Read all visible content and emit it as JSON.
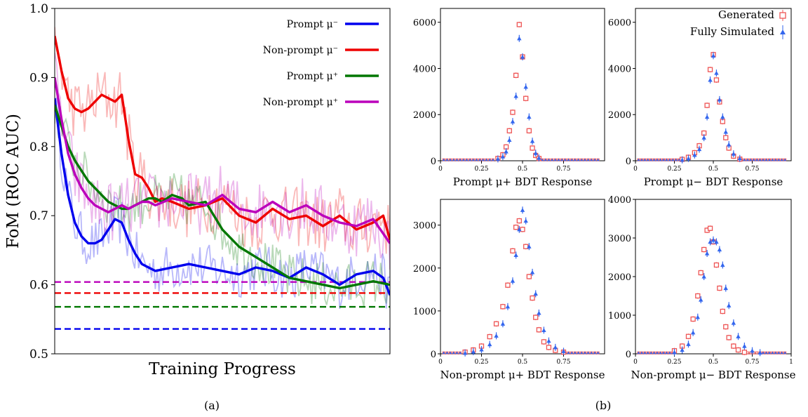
{
  "panel_labels": [
    "(a)",
    "(b)"
  ],
  "legend_b": {
    "generated": "Generated",
    "fully_simulated": "Fully Simulated"
  },
  "chart_data": [
    {
      "type": "line",
      "title": "",
      "xlabel": "Training Progress",
      "ylabel": "FoM (ROC AUC)",
      "ylim": [
        0.5,
        1.0
      ],
      "xlim": [
        0,
        100
      ],
      "yticks": [
        "0.5",
        "0.6",
        "0.7",
        "0.8",
        "0.9",
        "1.0"
      ],
      "grid": false,
      "legend_placement": "top-right",
      "series": [
        {
          "name": "Prompt μ⁻",
          "legend": "Prompt μ⁻",
          "color": "#0000ee",
          "x": [
            0,
            2,
            4,
            6,
            8,
            10,
            12,
            14,
            16,
            18,
            20,
            22,
            24,
            26,
            28,
            30,
            35,
            40,
            45,
            50,
            55,
            60,
            65,
            70,
            75,
            80,
            85,
            90,
            95,
            98,
            100
          ],
          "y": [
            0.87,
            0.79,
            0.73,
            0.69,
            0.67,
            0.66,
            0.66,
            0.665,
            0.68,
            0.695,
            0.69,
            0.665,
            0.645,
            0.63,
            0.625,
            0.62,
            0.625,
            0.63,
            0.625,
            0.62,
            0.615,
            0.625,
            0.62,
            0.61,
            0.625,
            0.615,
            0.6,
            0.615,
            0.62,
            0.61,
            0.585
          ],
          "baseline": 0.536
        },
        {
          "name": "Non-prompt μ⁻",
          "legend": "Non-prompt μ⁻",
          "color": "#ee0000",
          "x": [
            0,
            2,
            4,
            6,
            8,
            10,
            12,
            14,
            16,
            18,
            20,
            22,
            24,
            26,
            28,
            30,
            32,
            35,
            40,
            45,
            50,
            55,
            60,
            65,
            70,
            75,
            80,
            85,
            90,
            95,
            98,
            100
          ],
          "y": [
            0.96,
            0.91,
            0.87,
            0.855,
            0.85,
            0.855,
            0.865,
            0.875,
            0.87,
            0.865,
            0.875,
            0.81,
            0.76,
            0.755,
            0.74,
            0.72,
            0.725,
            0.72,
            0.71,
            0.715,
            0.725,
            0.7,
            0.69,
            0.71,
            0.695,
            0.7,
            0.685,
            0.7,
            0.68,
            0.69,
            0.7,
            0.665
          ],
          "baseline": 0.588
        },
        {
          "name": "Prompt μ⁺",
          "legend": "Prompt μ⁺",
          "color": "#007700",
          "x": [
            0,
            2,
            4,
            6,
            8,
            10,
            12,
            14,
            16,
            18,
            20,
            22,
            24,
            26,
            28,
            30,
            32,
            35,
            38,
            40,
            45,
            50,
            55,
            60,
            65,
            70,
            75,
            80,
            85,
            90,
            95,
            100
          ],
          "y": [
            0.86,
            0.83,
            0.8,
            0.78,
            0.765,
            0.75,
            0.74,
            0.73,
            0.72,
            0.715,
            0.71,
            0.71,
            0.715,
            0.72,
            0.725,
            0.725,
            0.72,
            0.73,
            0.725,
            0.715,
            0.72,
            0.68,
            0.655,
            0.64,
            0.625,
            0.61,
            0.605,
            0.6,
            0.595,
            0.6,
            0.605,
            0.6
          ],
          "baseline": 0.568
        },
        {
          "name": "Non-prompt μ⁺",
          "legend": "Non-prompt μ⁺",
          "color": "#bb00bb",
          "x": [
            0,
            2,
            4,
            6,
            8,
            10,
            12,
            14,
            16,
            18,
            20,
            22,
            24,
            26,
            28,
            30,
            35,
            40,
            45,
            50,
            55,
            60,
            65,
            70,
            75,
            80,
            85,
            90,
            95,
            100
          ],
          "y": [
            0.9,
            0.84,
            0.79,
            0.76,
            0.74,
            0.725,
            0.715,
            0.71,
            0.705,
            0.71,
            0.715,
            0.71,
            0.715,
            0.72,
            0.72,
            0.715,
            0.725,
            0.72,
            0.715,
            0.73,
            0.71,
            0.705,
            0.72,
            0.705,
            0.715,
            0.7,
            0.69,
            0.685,
            0.695,
            0.66
          ],
          "baseline": 0.604
        }
      ]
    },
    {
      "type": "scatter",
      "xlabel": "Prompt μ+ BDT Response",
      "ylabel": "",
      "xlim": [
        0,
        1
      ],
      "ylim": [
        0,
        6600
      ],
      "xticks": [
        "0",
        "0.25",
        "0.5",
        "0.75"
      ],
      "yticks": [
        "0",
        "2000",
        "4000",
        "6000"
      ],
      "series": [
        {
          "name": "Generated",
          "x": [
            0.35,
            0.38,
            0.4,
            0.42,
            0.44,
            0.46,
            0.48,
            0.5,
            0.52,
            0.54,
            0.56,
            0.58,
            0.6
          ],
          "y": [
            100,
            260,
            600,
            1300,
            2100,
            3700,
            5900,
            4500,
            2700,
            1300,
            550,
            230,
            100
          ]
        },
        {
          "name": "Fully Simulated",
          "x": [
            0.35,
            0.38,
            0.4,
            0.42,
            0.44,
            0.46,
            0.48,
            0.5,
            0.52,
            0.54,
            0.56,
            0.58,
            0.6
          ],
          "y": [
            80,
            180,
            400,
            900,
            1700,
            2800,
            5300,
            4500,
            3200,
            1900,
            850,
            330,
            120
          ]
        }
      ]
    },
    {
      "type": "scatter",
      "xlabel": "Prompt μ− BDT Response",
      "ylabel": "",
      "xlim": [
        0,
        1
      ],
      "ylim": [
        0,
        6600
      ],
      "xticks": [
        "0",
        "0.25",
        "0.5",
        "0.75"
      ],
      "yticks": [
        "0",
        "2000",
        "4000",
        "6000"
      ],
      "series": [
        {
          "name": "Generated",
          "x": [
            0.3,
            0.34,
            0.38,
            0.41,
            0.44,
            0.46,
            0.48,
            0.5,
            0.52,
            0.54,
            0.56,
            0.58,
            0.6,
            0.63,
            0.67
          ],
          "y": [
            60,
            150,
            350,
            650,
            1200,
            2400,
            3950,
            4600,
            3500,
            2550,
            1700,
            1000,
            550,
            200,
            70
          ]
        },
        {
          "name": "Fully Simulated",
          "x": [
            0.3,
            0.34,
            0.38,
            0.41,
            0.44,
            0.46,
            0.48,
            0.5,
            0.52,
            0.54,
            0.56,
            0.58,
            0.6,
            0.63,
            0.67
          ],
          "y": [
            40,
            100,
            250,
            500,
            1000,
            1900,
            3500,
            4550,
            3800,
            2650,
            1900,
            1250,
            700,
            300,
            100
          ]
        }
      ]
    },
    {
      "type": "scatter",
      "xlabel": "Non-prompt μ+ BDT Response",
      "ylabel": "",
      "xlim": [
        0,
        1
      ],
      "ylim": [
        0,
        3600
      ],
      "xticks": [
        "0",
        "0.25",
        "0.5",
        "0.75"
      ],
      "yticks": [
        "0",
        "1000",
        "2000",
        "3000"
      ],
      "series": [
        {
          "name": "Generated",
          "x": [
            0.15,
            0.2,
            0.25,
            0.3,
            0.34,
            0.38,
            0.41,
            0.44,
            0.46,
            0.48,
            0.5,
            0.52,
            0.54,
            0.56,
            0.58,
            0.6,
            0.63,
            0.66,
            0.7,
            0.75
          ],
          "y": [
            40,
            90,
            180,
            400,
            700,
            1100,
            1600,
            2400,
            2950,
            3100,
            2900,
            2500,
            1800,
            1300,
            850,
            560,
            280,
            150,
            80,
            40
          ]
        },
        {
          "name": "Fully Simulated",
          "x": [
            0.15,
            0.2,
            0.25,
            0.3,
            0.34,
            0.38,
            0.41,
            0.44,
            0.46,
            0.48,
            0.5,
            0.52,
            0.54,
            0.56,
            0.58,
            0.6,
            0.63,
            0.66,
            0.7,
            0.75
          ],
          "y": [
            20,
            50,
            100,
            220,
            420,
            700,
            1100,
            1700,
            2300,
            2900,
            3350,
            3100,
            2500,
            1900,
            1400,
            950,
            550,
            300,
            150,
            60
          ]
        }
      ]
    },
    {
      "type": "scatter",
      "xlabel": "Non-prompt μ− BDT Response",
      "ylabel": "",
      "xlim": [
        0,
        1
      ],
      "ylim": [
        0,
        4000
      ],
      "xticks": [
        "0",
        "0.25",
        "0.5",
        "0.75",
        "1"
      ],
      "yticks": [
        "0",
        "1000",
        "2000",
        "3000",
        "4000"
      ],
      "series": [
        {
          "name": "Generated",
          "x": [
            0.25,
            0.3,
            0.34,
            0.37,
            0.4,
            0.42,
            0.44,
            0.46,
            0.48,
            0.5,
            0.52,
            0.54,
            0.56,
            0.58,
            0.6,
            0.63,
            0.66,
            0.7
          ],
          "y": [
            80,
            200,
            450,
            900,
            1500,
            2100,
            2700,
            3200,
            3250,
            2900,
            2300,
            1700,
            1100,
            700,
            420,
            200,
            100,
            40
          ]
        },
        {
          "name": "Fully Simulated",
          "x": [
            0.25,
            0.3,
            0.34,
            0.37,
            0.4,
            0.42,
            0.44,
            0.46,
            0.48,
            0.5,
            0.52,
            0.54,
            0.56,
            0.58,
            0.6,
            0.63,
            0.66,
            0.7,
            0.75,
            0.8
          ],
          "y": [
            40,
            100,
            250,
            550,
            950,
            1400,
            2000,
            2600,
            2900,
            2950,
            2900,
            2700,
            2300,
            1700,
            1250,
            800,
            450,
            200,
            80,
            30
          ]
        }
      ]
    }
  ]
}
